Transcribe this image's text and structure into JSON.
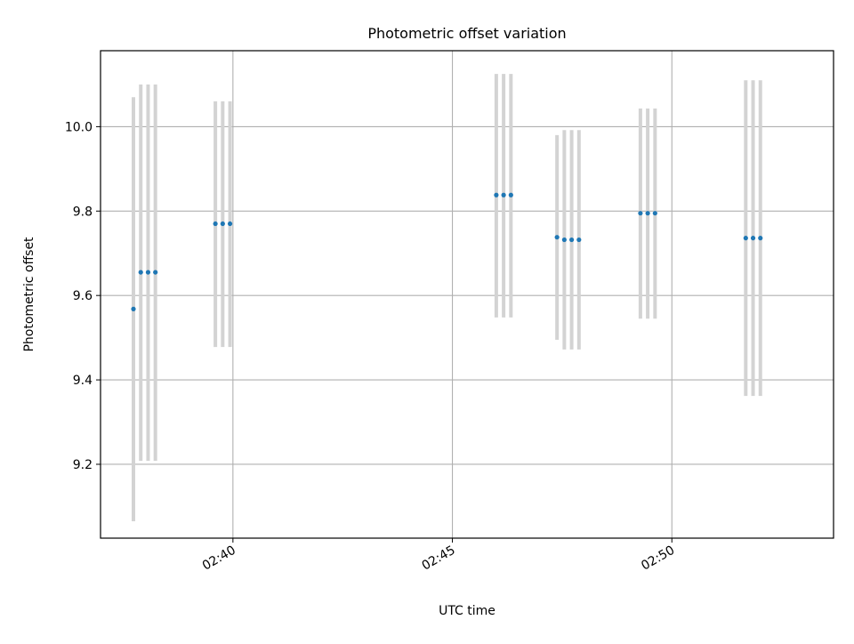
{
  "chart_data": {
    "type": "scatter",
    "title": "Photometric offset variation",
    "xlabel": "UTC time",
    "ylabel": "Photometric offset",
    "x_axis_type": "time",
    "x_ticks": [
      "02:40",
      "02:45",
      "02:50"
    ],
    "y_ticks": [
      9.2,
      9.4,
      9.6,
      9.8,
      10.0
    ],
    "xlim": [
      "02:36:59",
      "02:53:41"
    ],
    "ylim": [
      9.025,
      10.18
    ],
    "grid": true,
    "marker_color": "#1f77b4",
    "errorbar_color": "#d3d3d3",
    "points": [
      {
        "t": "02:37:44",
        "y": 9.568,
        "lo": 9.065,
        "hi": 10.07
      },
      {
        "t": "02:37:54",
        "y": 9.655,
        "lo": 9.208,
        "hi": 10.1
      },
      {
        "t": "02:38:04",
        "y": 9.655,
        "lo": 9.208,
        "hi": 10.1
      },
      {
        "t": "02:38:14",
        "y": 9.655,
        "lo": 9.208,
        "hi": 10.1
      },
      {
        "t": "02:39:36",
        "y": 9.77,
        "lo": 9.478,
        "hi": 10.06
      },
      {
        "t": "02:39:46",
        "y": 9.77,
        "lo": 9.478,
        "hi": 10.06
      },
      {
        "t": "02:39:56",
        "y": 9.77,
        "lo": 9.478,
        "hi": 10.06
      },
      {
        "t": "02:46:00",
        "y": 9.838,
        "lo": 9.548,
        "hi": 10.125
      },
      {
        "t": "02:46:10",
        "y": 9.838,
        "lo": 9.548,
        "hi": 10.125
      },
      {
        "t": "02:46:20",
        "y": 9.838,
        "lo": 9.548,
        "hi": 10.125
      },
      {
        "t": "02:47:23",
        "y": 9.738,
        "lo": 9.495,
        "hi": 9.98
      },
      {
        "t": "02:47:33",
        "y": 9.732,
        "lo": 9.472,
        "hi": 9.992
      },
      {
        "t": "02:47:43",
        "y": 9.732,
        "lo": 9.472,
        "hi": 9.992
      },
      {
        "t": "02:47:53",
        "y": 9.732,
        "lo": 9.472,
        "hi": 9.992
      },
      {
        "t": "02:49:17",
        "y": 9.795,
        "lo": 9.545,
        "hi": 10.043
      },
      {
        "t": "02:49:27",
        "y": 9.795,
        "lo": 9.545,
        "hi": 10.043
      },
      {
        "t": "02:49:37",
        "y": 9.795,
        "lo": 9.545,
        "hi": 10.043
      },
      {
        "t": "02:51:41",
        "y": 9.736,
        "lo": 9.362,
        "hi": 10.11
      },
      {
        "t": "02:51:51",
        "y": 9.736,
        "lo": 9.362,
        "hi": 10.11
      },
      {
        "t": "02:52:01",
        "y": 9.736,
        "lo": 9.362,
        "hi": 10.11
      }
    ]
  }
}
